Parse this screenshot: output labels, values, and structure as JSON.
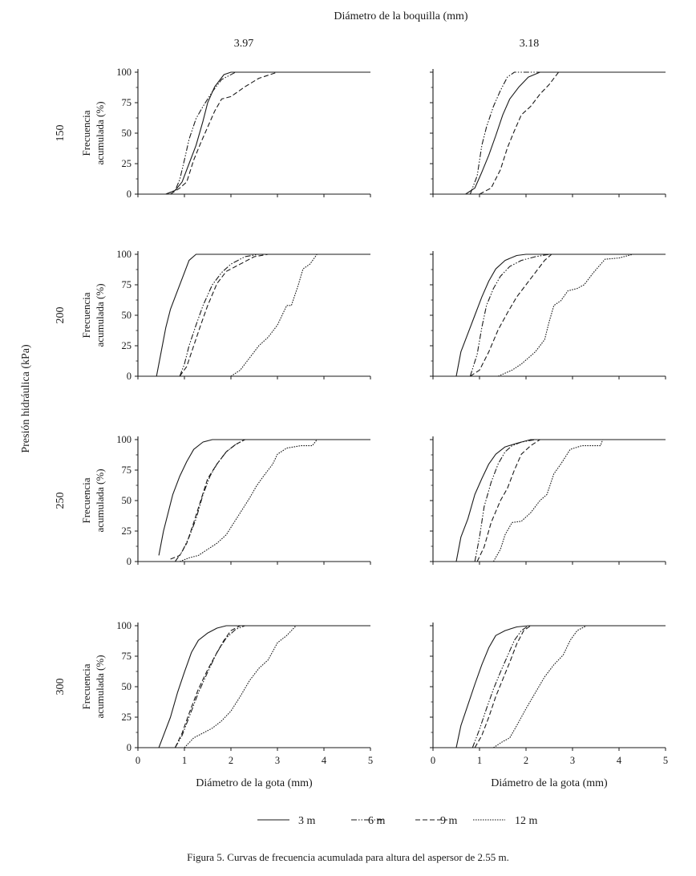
{
  "figure": {
    "top_title": "Diámetro de la boquilla (mm)",
    "column_labels": [
      "3.97",
      "3.18"
    ],
    "row_labels": [
      "150",
      "200",
      "250",
      "300"
    ],
    "outer_ylabel": "Presión hidráulica (kPa)",
    "panel_ylabel_line1": "Frecuencia",
    "panel_ylabel_line2": "acumulada (%)",
    "xlabel": "Diámetro de la gota (mm)",
    "caption": "Figura 5. Curvas de frecuencia acumulada para altura del aspersor de 2.55 m.",
    "legend": [
      {
        "label": "3 m",
        "style": "solid"
      },
      {
        "label": "6 m",
        "style": "dashdotdot"
      },
      {
        "label": "9 m",
        "style": "dashed"
      },
      {
        "label": "12 m",
        "style": "dotted"
      }
    ],
    "line_color": "#1a1a1a"
  },
  "chart_data": [
    {
      "type": "line",
      "row": "150",
      "column": "3.97",
      "xlim": [
        0,
        5
      ],
      "ylim": [
        0,
        100
      ],
      "xticks": [
        0,
        1,
        2,
        3,
        4,
        5
      ],
      "yticks": [
        0,
        25,
        50,
        75,
        100
      ],
      "series": [
        {
          "name": "3 m",
          "x": [
            0.6,
            0.8,
            0.95,
            1.1,
            1.25,
            1.4,
            1.5,
            1.65,
            1.85,
            2.0,
            5.0
          ],
          "y": [
            0,
            3,
            10,
            25,
            40,
            60,
            75,
            88,
            98,
            100,
            100
          ]
        },
        {
          "name": "6 m",
          "x": [
            0.6,
            0.8,
            0.9,
            1.0,
            1.1,
            1.25,
            1.4,
            1.6,
            1.8,
            2.1,
            5.0
          ],
          "y": [
            0,
            3,
            12,
            28,
            45,
            62,
            72,
            84,
            94,
            100,
            100
          ]
        },
        {
          "name": "9 m",
          "x": [
            0.7,
            0.9,
            1.05,
            1.2,
            1.35,
            1.5,
            1.65,
            1.8,
            2.0,
            2.3,
            2.6,
            3.0,
            5.0
          ],
          "y": [
            0,
            5,
            10,
            28,
            42,
            55,
            68,
            78,
            80,
            88,
            95,
            100,
            100
          ]
        }
      ]
    },
    {
      "type": "line",
      "row": "150",
      "column": "3.18",
      "xlim": [
        0,
        5
      ],
      "ylim": [
        0,
        100
      ],
      "xticks": [
        0,
        1,
        2,
        3,
        4,
        5
      ],
      "yticks": [
        0,
        25,
        50,
        75,
        100
      ],
      "series": [
        {
          "name": "3 m",
          "x": [
            0.7,
            0.9,
            1.05,
            1.2,
            1.35,
            1.5,
            1.65,
            1.85,
            2.05,
            2.3,
            5.0
          ],
          "y": [
            0,
            5,
            18,
            32,
            48,
            65,
            78,
            88,
            96,
            100,
            100
          ]
        },
        {
          "name": "6 m",
          "x": [
            0.8,
            0.95,
            1.05,
            1.15,
            1.3,
            1.45,
            1.6,
            1.75,
            5.0
          ],
          "y": [
            0,
            15,
            40,
            55,
            72,
            85,
            96,
            100,
            100
          ]
        },
        {
          "name": "9 m",
          "x": [
            1.0,
            1.25,
            1.45,
            1.6,
            1.75,
            1.9,
            2.1,
            2.3,
            2.5,
            2.7,
            5.0
          ],
          "y": [
            0,
            5,
            20,
            38,
            52,
            65,
            72,
            82,
            90,
            100,
            100
          ]
        }
      ]
    },
    {
      "type": "line",
      "row": "200",
      "column": "3.97",
      "xlim": [
        0,
        5
      ],
      "ylim": [
        0,
        100
      ],
      "xticks": [
        0,
        1,
        2,
        3,
        4,
        5
      ],
      "yticks": [
        0,
        25,
        50,
        75,
        100
      ],
      "series": [
        {
          "name": "3 m",
          "x": [
            0.4,
            0.5,
            0.6,
            0.7,
            0.85,
            1.0,
            1.1,
            1.25,
            5.0
          ],
          "y": [
            0,
            20,
            40,
            55,
            70,
            85,
            95,
            100,
            100
          ]
        },
        {
          "name": "6 m",
          "x": [
            0.9,
            1.0,
            1.1,
            1.25,
            1.4,
            1.6,
            1.8,
            2.0,
            2.3,
            2.6,
            5.0
          ],
          "y": [
            0,
            10,
            25,
            42,
            58,
            75,
            85,
            92,
            98,
            100,
            100
          ]
        },
        {
          "name": "9 m",
          "x": [
            0.9,
            1.05,
            1.2,
            1.35,
            1.5,
            1.7,
            1.9,
            2.2,
            2.5,
            2.8,
            5.0
          ],
          "y": [
            0,
            8,
            25,
            42,
            58,
            76,
            86,
            92,
            98,
            100,
            100
          ]
        },
        {
          "name": "12 m",
          "x": [
            2.0,
            2.2,
            2.4,
            2.6,
            2.8,
            3.0,
            3.2,
            3.3,
            3.45,
            3.55,
            3.7,
            3.85,
            5.0
          ],
          "y": [
            0,
            5,
            15,
            25,
            32,
            42,
            58,
            58,
            75,
            88,
            92,
            100,
            100
          ]
        }
      ]
    },
    {
      "type": "line",
      "row": "200",
      "column": "3.18",
      "xlim": [
        0,
        5
      ],
      "ylim": [
        0,
        100
      ],
      "xticks": [
        0,
        1,
        2,
        3,
        4,
        5
      ],
      "yticks": [
        0,
        25,
        50,
        75,
        100
      ],
      "series": [
        {
          "name": "3 m",
          "x": [
            0.5,
            0.6,
            0.75,
            0.9,
            1.05,
            1.2,
            1.35,
            1.55,
            1.8,
            2.0,
            5.0
          ],
          "y": [
            0,
            20,
            35,
            50,
            65,
            78,
            88,
            95,
            99,
            100,
            100
          ]
        },
        {
          "name": "6 m",
          "x": [
            0.8,
            0.95,
            1.05,
            1.15,
            1.3,
            1.45,
            1.65,
            1.9,
            2.2,
            2.5,
            5.0
          ],
          "y": [
            0,
            18,
            40,
            58,
            72,
            82,
            90,
            95,
            98,
            100,
            100
          ]
        },
        {
          "name": "9 m",
          "x": [
            0.8,
            1.0,
            1.2,
            1.4,
            1.6,
            1.8,
            2.0,
            2.2,
            2.4,
            2.55,
            5.0
          ],
          "y": [
            0,
            5,
            20,
            38,
            52,
            65,
            75,
            85,
            95,
            100,
            100
          ]
        },
        {
          "name": "12 m",
          "x": [
            1.4,
            1.7,
            1.9,
            2.2,
            2.4,
            2.5,
            2.6,
            2.75,
            2.9,
            3.1,
            3.25,
            3.45,
            3.7,
            4.0,
            4.3,
            5.0
          ],
          "y": [
            0,
            5,
            10,
            20,
            30,
            45,
            58,
            62,
            70,
            72,
            75,
            85,
            96,
            97,
            100,
            100
          ]
        }
      ]
    },
    {
      "type": "line",
      "row": "250",
      "column": "3.97",
      "xlim": [
        0,
        5
      ],
      "ylim": [
        0,
        100
      ],
      "xticks": [
        0,
        1,
        2,
        3,
        4,
        5
      ],
      "yticks": [
        0,
        25,
        50,
        75,
        100
      ],
      "series": [
        {
          "name": "3 m",
          "x": [
            0.45,
            0.55,
            0.65,
            0.75,
            0.9,
            1.05,
            1.2,
            1.4,
            1.6,
            5.0
          ],
          "y": [
            5,
            25,
            40,
            55,
            70,
            82,
            92,
            98,
            100,
            100
          ]
        },
        {
          "name": "6 m",
          "x": [
            0.8,
            0.95,
            1.1,
            1.25,
            1.4,
            1.55,
            1.7,
            1.9,
            2.1,
            2.3,
            5.0
          ],
          "y": [
            0,
            8,
            20,
            35,
            55,
            70,
            80,
            90,
            96,
            100,
            100
          ]
        },
        {
          "name": "9 m",
          "x": [
            0.7,
            0.9,
            1.05,
            1.2,
            1.35,
            1.5,
            1.7,
            1.9,
            2.1,
            2.3,
            5.0
          ],
          "y": [
            2,
            5,
            15,
            32,
            50,
            68,
            80,
            90,
            96,
            100,
            100
          ]
        },
        {
          "name": "12 m",
          "x": [
            0.9,
            1.1,
            1.3,
            1.5,
            1.7,
            1.9,
            2.0,
            2.2,
            2.4,
            2.55,
            2.7,
            2.9,
            3.0,
            3.2,
            3.5,
            3.75,
            3.85,
            5.0
          ],
          "y": [
            0,
            3,
            5,
            10,
            15,
            22,
            28,
            40,
            52,
            62,
            70,
            80,
            88,
            93,
            95,
            95,
            100,
            100
          ]
        }
      ]
    },
    {
      "type": "line",
      "row": "250",
      "column": "3.18",
      "xlim": [
        0,
        5
      ],
      "ylim": [
        0,
        100
      ],
      "xticks": [
        0,
        1,
        2,
        3,
        4,
        5
      ],
      "yticks": [
        0,
        25,
        50,
        75,
        100
      ],
      "series": [
        {
          "name": "3 m",
          "x": [
            0.5,
            0.6,
            0.75,
            0.9,
            1.05,
            1.2,
            1.35,
            1.55,
            1.8,
            2.1,
            5.0
          ],
          "y": [
            0,
            20,
            35,
            55,
            68,
            80,
            88,
            94,
            97,
            100,
            100
          ]
        },
        {
          "name": "6 m",
          "x": [
            0.9,
            1.0,
            1.1,
            1.25,
            1.4,
            1.55,
            1.7,
            1.9,
            2.2,
            5.0
          ],
          "y": [
            0,
            20,
            45,
            65,
            80,
            90,
            95,
            98,
            100,
            100
          ]
        },
        {
          "name": "9 m",
          "x": [
            0.95,
            1.1,
            1.25,
            1.45,
            1.6,
            1.75,
            1.9,
            2.1,
            2.3,
            5.0
          ],
          "y": [
            0,
            12,
            32,
            50,
            60,
            75,
            88,
            95,
            100,
            100
          ]
        },
        {
          "name": "12 m",
          "x": [
            1.3,
            1.45,
            1.55,
            1.7,
            1.9,
            2.1,
            2.3,
            2.45,
            2.6,
            2.75,
            2.95,
            3.2,
            3.45,
            3.6,
            3.65,
            5.0
          ],
          "y": [
            0,
            10,
            22,
            32,
            33,
            40,
            50,
            55,
            72,
            80,
            92,
            95,
            95,
            95,
            100,
            100
          ]
        }
      ]
    },
    {
      "type": "line",
      "row": "300",
      "column": "3.97",
      "xlim": [
        0,
        5
      ],
      "ylim": [
        0,
        100
      ],
      "xticks": [
        0,
        1,
        2,
        3,
        4,
        5
      ],
      "yticks": [
        0,
        25,
        50,
        75,
        100
      ],
      "series": [
        {
          "name": "3 m",
          "x": [
            0.45,
            0.55,
            0.7,
            0.85,
            1.0,
            1.15,
            1.3,
            1.5,
            1.7,
            1.9,
            5.0
          ],
          "y": [
            0,
            10,
            25,
            45,
            62,
            78,
            88,
            94,
            98,
            100,
            100
          ]
        },
        {
          "name": "6 m",
          "x": [
            0.8,
            0.95,
            1.1,
            1.3,
            1.5,
            1.7,
            1.9,
            2.1,
            2.3,
            5.0
          ],
          "y": [
            0,
            10,
            25,
            45,
            62,
            78,
            90,
            97,
            100,
            100
          ]
        },
        {
          "name": "9 m",
          "x": [
            0.8,
            0.95,
            1.1,
            1.3,
            1.5,
            1.7,
            1.85,
            2.0,
            2.2,
            5.0
          ],
          "y": [
            0,
            12,
            28,
            48,
            64,
            78,
            88,
            96,
            100,
            100
          ]
        },
        {
          "name": "12 m",
          "x": [
            1.0,
            1.2,
            1.4,
            1.6,
            1.8,
            2.0,
            2.2,
            2.4,
            2.6,
            2.8,
            3.0,
            3.2,
            3.4,
            5.0
          ],
          "y": [
            0,
            8,
            12,
            16,
            22,
            30,
            42,
            55,
            65,
            72,
            86,
            92,
            100,
            100
          ]
        }
      ]
    },
    {
      "type": "line",
      "row": "300",
      "column": "3.18",
      "xlim": [
        0,
        5
      ],
      "ylim": [
        0,
        100
      ],
      "xticks": [
        0,
        1,
        2,
        3,
        4,
        5
      ],
      "yticks": [
        0,
        25,
        50,
        75,
        100
      ],
      "series": [
        {
          "name": "3 m",
          "x": [
            0.5,
            0.6,
            0.75,
            0.9,
            1.05,
            1.2,
            1.35,
            1.55,
            1.8,
            2.05,
            5.0
          ],
          "y": [
            0,
            18,
            35,
            52,
            68,
            82,
            92,
            96,
            99,
            100,
            100
          ]
        },
        {
          "name": "6 m",
          "x": [
            0.85,
            1.0,
            1.15,
            1.3,
            1.45,
            1.6,
            1.75,
            1.9,
            2.05,
            5.0
          ],
          "y": [
            0,
            15,
            32,
            48,
            62,
            75,
            88,
            96,
            100,
            100
          ]
        },
        {
          "name": "9 m",
          "x": [
            0.9,
            1.05,
            1.2,
            1.35,
            1.5,
            1.65,
            1.8,
            1.95,
            2.1,
            5.0
          ],
          "y": [
            0,
            10,
            25,
            42,
            56,
            70,
            85,
            96,
            100,
            100
          ]
        },
        {
          "name": "12 m",
          "x": [
            1.3,
            1.5,
            1.65,
            1.8,
            2.0,
            2.2,
            2.4,
            2.6,
            2.8,
            2.95,
            3.1,
            3.3,
            5.0
          ],
          "y": [
            0,
            5,
            8,
            18,
            32,
            45,
            58,
            68,
            76,
            88,
            96,
            100,
            100
          ]
        }
      ]
    }
  ]
}
